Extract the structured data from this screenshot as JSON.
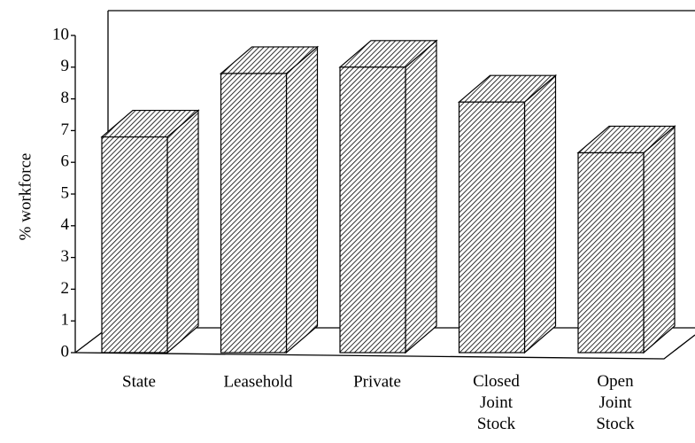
{
  "chart_data": {
    "type": "bar3d",
    "y_label": "% workforce",
    "categories": [
      "State",
      "Leasehold",
      "Private",
      "Closed Joint Stock",
      "Open Joint Stock"
    ],
    "values": [
      6.8,
      8.8,
      9.0,
      7.9,
      6.3
    ],
    "ylim": [
      0,
      10
    ],
    "yticks": [
      0,
      1,
      2,
      3,
      4,
      5,
      6,
      7,
      8,
      9,
      10
    ],
    "color": "#000000",
    "hatch": true
  }
}
